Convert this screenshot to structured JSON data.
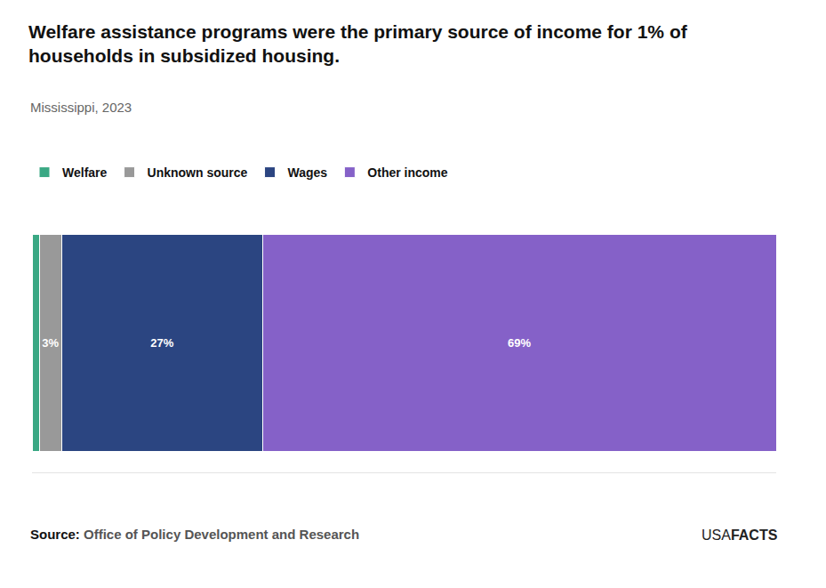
{
  "chart_data": {
    "type": "bar",
    "title": [
      "Welfare assistance programs were the primary source of income for 1% of",
      "households in subsidized housing."
    ],
    "subtitle": "Mississippi, 2023",
    "categories": [
      null
    ],
    "series": [
      {
        "name": "Welfare",
        "color": "#3aa884",
        "values": [
          1
        ]
      },
      {
        "name": "Unknown source",
        "color": "#999999",
        "values": [
          3
        ],
        "value_labels": [
          "3%"
        ]
      },
      {
        "name": "Wages",
        "color": "#2b4581",
        "values": [
          27
        ],
        "value_labels": [
          "27%"
        ]
      },
      {
        "name": "Other income",
        "color": "#8561c8",
        "values": [
          69
        ],
        "value_labels": [
          "69%"
        ]
      }
    ],
    "orientation": "horizontal",
    "stacked": true,
    "data_labels": true,
    "xlim": [
      0,
      100
    ],
    "tick_labels": false,
    "legend": "top",
    "source_label": "Source:",
    "source": "Office of Policy Development and Research",
    "branding": {
      "light": "USA",
      "bold": "FACTS"
    }
  }
}
